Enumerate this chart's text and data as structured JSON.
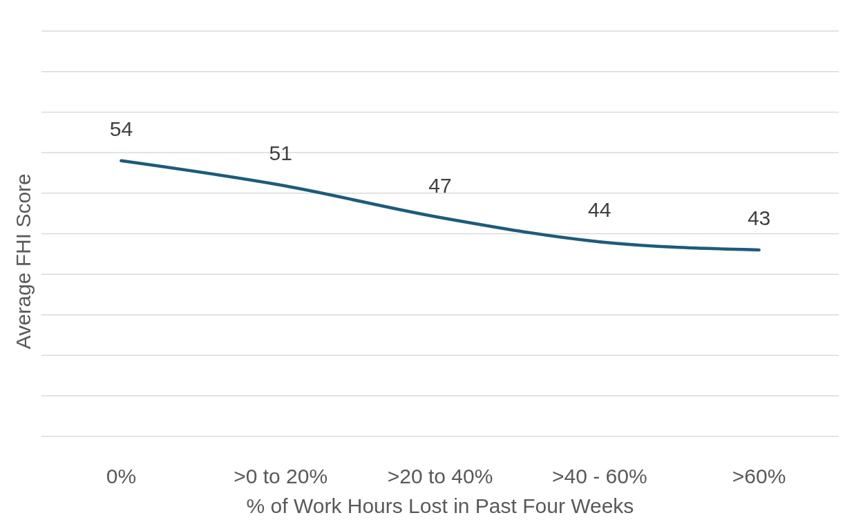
{
  "chart_data": {
    "type": "line",
    "xlabel": "% of Work Hours Lost in Past Four Weeks",
    "ylabel": "Average FHI Score",
    "categories": [
      "0%",
      ">0 to 20%",
      ">20 to 40%",
      ">40 - 60%",
      ">60%"
    ],
    "series": [
      {
        "color": "#1d5b7a",
        "values": [
          54,
          51,
          47,
          44,
          43
        ]
      }
    ],
    "ylim": [
      20,
      70
    ],
    "yticks": [
      {
        "value": 20,
        "label": null
      },
      {
        "value": 25,
        "label": null
      },
      {
        "value": 30,
        "label": null
      },
      {
        "value": 35,
        "label": null
      },
      {
        "value": 40,
        "label": null
      },
      {
        "value": 45,
        "label": null
      },
      {
        "value": 50,
        "label": null
      },
      {
        "value": 55,
        "label": null
      },
      {
        "value": 60,
        "label": null
      },
      {
        "value": 65,
        "label": null
      },
      {
        "value": 70,
        "label": null
      }
    ],
    "grid": "y",
    "tick_labels": "x",
    "data_labels": true,
    "marker": "none",
    "line_style": "solid"
  }
}
